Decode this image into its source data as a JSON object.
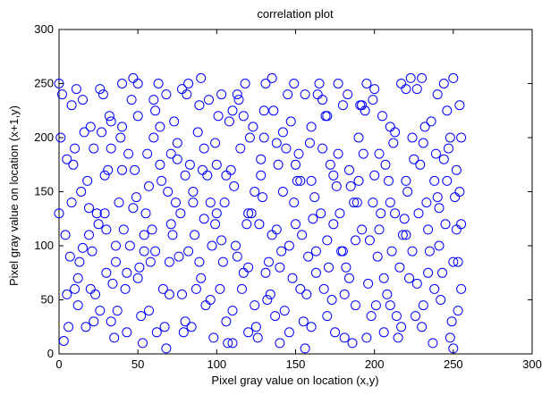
{
  "chart_data": {
    "type": "scatter",
    "title": "correlation plot",
    "xlabel": "Pixel gray value on location (x,y)",
    "ylabel": "Pixel gray value on location (x+1,y)",
    "xlim": [
      0,
      300
    ],
    "ylim": [
      0,
      300
    ],
    "xticks": [
      0,
      50,
      100,
      150,
      200,
      250,
      300
    ],
    "yticks": [
      0,
      50,
      100,
      150,
      200,
      250,
      300
    ],
    "grid": false,
    "legend": "none",
    "marker": "circle-open",
    "marker_color": "#0000ff",
    "data_range_note_x": [
      0,
      255
    ],
    "data_range_note_y": [
      0,
      255
    ],
    "points": [
      [
        3,
        12
      ],
      [
        5,
        180
      ],
      [
        8,
        230
      ],
      [
        12,
        45
      ],
      [
        15,
        98
      ],
      [
        18,
        160
      ],
      [
        20,
        210
      ],
      [
        22,
        30
      ],
      [
        25,
        120
      ],
      [
        28,
        240
      ],
      [
        30,
        75
      ],
      [
        33,
        190
      ],
      [
        35,
        15
      ],
      [
        38,
        140
      ],
      [
        40,
        250
      ],
      [
        42,
        60
      ],
      [
        45,
        100
      ],
      [
        48,
        170
      ],
      [
        50,
        220
      ],
      [
        52,
        35
      ],
      [
        55,
        130
      ],
      [
        58,
        85
      ],
      [
        60,
        200
      ],
      [
        62,
        20
      ],
      [
        65,
        160
      ],
      [
        68,
        240
      ],
      [
        70,
        55
      ],
      [
        72,
        110
      ],
      [
        75,
        180
      ],
      [
        78,
        245
      ],
      [
        80,
        30
      ],
      [
        82,
        95
      ],
      [
        85,
        150
      ],
      [
        88,
        205
      ],
      [
        90,
        70
      ],
      [
        92,
        125
      ],
      [
        95,
        235
      ],
      [
        98,
        15
      ],
      [
        100,
        175
      ],
      [
        102,
        60
      ],
      [
        105,
        140
      ],
      [
        108,
        215
      ],
      [
        110,
        40
      ],
      [
        112,
        100
      ],
      [
        115,
        190
      ],
      [
        118,
        250
      ],
      [
        120,
        80
      ],
      [
        122,
        130
      ],
      [
        125,
        25
      ],
      [
        128,
        165
      ],
      [
        130,
        225
      ],
      [
        132,
        50
      ],
      [
        135,
        110
      ],
      [
        138,
        195
      ],
      [
        140,
        10
      ],
      [
        142,
        150
      ],
      [
        145,
        240
      ],
      [
        148,
        70
      ],
      [
        150,
        120
      ],
      [
        152,
        185
      ],
      [
        155,
        30
      ],
      [
        158,
        90
      ],
      [
        160,
        210
      ],
      [
        162,
        145
      ],
      [
        165,
        250
      ],
      [
        168,
        60
      ],
      [
        170,
        105
      ],
      [
        172,
        175
      ],
      [
        175,
        20
      ],
      [
        178,
        130
      ],
      [
        180,
        230
      ],
      [
        182,
        80
      ],
      [
        185,
        155
      ],
      [
        188,
        45
      ],
      [
        190,
        200
      ],
      [
        192,
        115
      ],
      [
        195,
        250
      ],
      [
        198,
        35
      ],
      [
        200,
        165
      ],
      [
        202,
        90
      ],
      [
        205,
        220
      ],
      [
        208,
        55
      ],
      [
        210,
        140
      ],
      [
        212,
        195
      ],
      [
        215,
        15
      ],
      [
        218,
        110
      ],
      [
        220,
        245
      ],
      [
        222,
        70
      ],
      [
        225,
        180
      ],
      [
        228,
        130
      ],
      [
        230,
        25
      ],
      [
        232,
        210
      ],
      [
        235,
        95
      ],
      [
        238,
        160
      ],
      [
        240,
        240
      ],
      [
        242,
        50
      ],
      [
        245,
        120
      ],
      [
        248,
        200
      ],
      [
        250,
        5
      ],
      [
        252,
        170
      ],
      [
        254,
        230
      ],
      [
        253,
        85
      ],
      [
        251,
        145
      ],
      [
        249,
        30
      ],
      [
        247,
        190
      ],
      [
        244,
        250
      ],
      [
        241,
        100
      ],
      [
        238,
        60
      ],
      [
        236,
        215
      ],
      [
        233,
        140
      ],
      [
        229,
        175
      ],
      [
        226,
        35
      ],
      [
        223,
        255
      ],
      [
        219,
        125
      ],
      [
        216,
        80
      ],
      [
        213,
        205
      ],
      [
        209,
        160
      ],
      [
        206,
        20
      ],
      [
        203,
        115
      ],
      [
        199,
        235
      ],
      [
        196,
        65
      ],
      [
        193,
        185
      ],
      [
        189,
        140
      ],
      [
        186,
        10
      ],
      [
        183,
        240
      ],
      [
        179,
        95
      ],
      [
        176,
        155
      ],
      [
        173,
        50
      ],
      [
        169,
        220
      ],
      [
        166,
        130
      ],
      [
        163,
        75
      ],
      [
        159,
        195
      ],
      [
        156,
        5
      ],
      [
        153,
        160
      ],
      [
        149,
        250
      ],
      [
        146,
        100
      ],
      [
        143,
        40
      ],
      [
        139,
        175
      ],
      [
        136,
        225
      ],
      [
        133,
        85
      ],
      [
        129,
        145
      ],
      [
        126,
        15
      ],
      [
        123,
        210
      ],
      [
        119,
        120
      ],
      [
        116,
        60
      ],
      [
        113,
        240
      ],
      [
        109,
        170
      ],
      [
        106,
        30
      ],
      [
        103,
        105
      ],
      [
        99,
        195
      ],
      [
        96,
        140
      ],
      [
        93,
        45
      ],
      [
        89,
        230
      ],
      [
        86,
        110
      ],
      [
        83,
        175
      ],
      [
        79,
        20
      ],
      [
        76,
        90
      ],
      [
        73,
        215
      ],
      [
        69,
        150
      ],
      [
        66,
        60
      ],
      [
        63,
        250
      ],
      [
        59,
        115
      ],
      [
        56,
        185
      ],
      [
        53,
        10
      ],
      [
        49,
        145
      ],
      [
        46,
        235
      ],
      [
        43,
        75
      ],
      [
        39,
        200
      ],
      [
        36,
        100
      ],
      [
        33,
        30
      ],
      [
        29,
        165
      ],
      [
        26,
        245
      ],
      [
        23,
        55
      ],
      [
        19,
        135
      ],
      [
        16,
        205
      ],
      [
        13,
        85
      ],
      [
        9,
        175
      ],
      [
        6,
        25
      ],
      [
        4,
        110
      ],
      [
        2,
        240
      ],
      [
        10,
        60
      ],
      [
        14,
        150
      ],
      [
        21,
        95
      ],
      [
        27,
        205
      ],
      [
        31,
        170
      ],
      [
        37,
        40
      ],
      [
        41,
        115
      ],
      [
        47,
        255
      ],
      [
        51,
        80
      ],
      [
        57,
        155
      ],
      [
        61,
        95
      ],
      [
        67,
        25
      ],
      [
        71,
        185
      ],
      [
        77,
        130
      ],
      [
        81,
        240
      ],
      [
        87,
        60
      ],
      [
        91,
        170
      ],
      [
        97,
        100
      ],
      [
        101,
        220
      ],
      [
        107,
        10
      ],
      [
        111,
        155
      ],
      [
        117,
        75
      ],
      [
        121,
        200
      ],
      [
        127,
        120
      ],
      [
        131,
        250
      ],
      [
        137,
        35
      ],
      [
        141,
        95
      ],
      [
        147,
        215
      ],
      [
        151,
        160
      ],
      [
        157,
        55
      ],
      [
        161,
        125
      ],
      [
        167,
        235
      ],
      [
        171,
        80
      ],
      [
        177,
        185
      ],
      [
        181,
        15
      ],
      [
        187,
        140
      ],
      [
        191,
        230
      ],
      [
        197,
        105
      ],
      [
        201,
        45
      ],
      [
        207,
        175
      ],
      [
        211,
        95
      ],
      [
        217,
        250
      ],
      [
        221,
        150
      ],
      [
        227,
        65
      ],
      [
        231,
        195
      ],
      [
        237,
        10
      ],
      [
        241,
        135
      ],
      [
        246,
        225
      ],
      [
        250,
        85
      ],
      [
        254,
        150
      ],
      [
        253,
        40
      ],
      [
        250,
        255
      ],
      [
        246,
        160
      ],
      [
        243,
        75
      ],
      [
        239,
        185
      ],
      [
        234,
        115
      ],
      [
        231,
        45
      ],
      [
        227,
        245
      ],
      [
        224,
        95
      ],
      [
        220,
        160
      ],
      [
        217,
        25
      ],
      [
        213,
        130
      ],
      [
        210,
        210
      ],
      [
        206,
        70
      ],
      [
        203,
        185
      ],
      [
        199,
        140
      ],
      [
        195,
        15
      ],
      [
        192,
        230
      ],
      [
        188,
        105
      ],
      [
        184,
        170
      ],
      [
        181,
        55
      ],
      [
        177,
        250
      ],
      [
        174,
        120
      ],
      [
        170,
        35
      ],
      [
        167,
        190
      ],
      [
        163,
        95
      ],
      [
        160,
        160
      ],
      [
        156,
        240
      ],
      [
        153,
        60
      ],
      [
        149,
        140
      ],
      [
        146,
        20
      ],
      [
        142,
        205
      ],
      [
        138,
        115
      ],
      [
        135,
        255
      ],
      [
        131,
        75
      ],
      [
        128,
        180
      ],
      [
        124,
        45
      ],
      [
        120,
        130
      ],
      [
        117,
        220
      ],
      [
        113,
        90
      ],
      [
        110,
        10
      ],
      [
        106,
        165
      ],
      [
        103,
        240
      ],
      [
        99,
        120
      ],
      [
        96,
        50
      ],
      [
        92,
        190
      ],
      [
        89,
        85
      ],
      [
        85,
        140
      ],
      [
        82,
        250
      ],
      [
        78,
        55
      ],
      [
        75,
        195
      ],
      [
        71,
        120
      ],
      [
        68,
        5
      ],
      [
        64,
        175
      ],
      [
        61,
        225
      ],
      [
        57,
        40
      ],
      [
        54,
        110
      ],
      [
        50,
        250
      ],
      [
        47,
        135
      ],
      [
        43,
        20
      ],
      [
        40,
        170
      ],
      [
        36,
        85
      ],
      [
        33,
        215
      ],
      [
        29,
        130
      ],
      [
        26,
        40
      ],
      [
        22,
        190
      ],
      [
        19,
        110
      ],
      [
        15,
        235
      ],
      [
        12,
        70
      ],
      [
        8,
        140
      ],
      [
        5,
        55
      ],
      [
        1,
        200
      ],
      [
        7,
        90
      ],
      [
        11,
        245
      ],
      [
        17,
        25
      ],
      [
        24,
        130
      ],
      [
        32,
        220
      ],
      [
        34,
        65
      ],
      [
        44,
        185
      ],
      [
        54,
        95
      ],
      [
        64,
        210
      ],
      [
        74,
        140
      ],
      [
        84,
        25
      ],
      [
        94,
        165
      ],
      [
        104,
        85
      ],
      [
        114,
        235
      ],
      [
        124,
        150
      ],
      [
        134,
        55
      ],
      [
        144,
        190
      ],
      [
        154,
        110
      ],
      [
        164,
        240
      ],
      [
        174,
        165
      ],
      [
        184,
        70
      ],
      [
        194,
        225
      ],
      [
        204,
        130
      ],
      [
        214,
        35
      ],
      [
        224,
        200
      ],
      [
        234,
        75
      ],
      [
        244,
        180
      ],
      [
        252,
        115
      ],
      [
        248,
        15
      ],
      [
        240,
        145
      ],
      [
        230,
        255
      ],
      [
        220,
        110
      ],
      [
        210,
        45
      ],
      [
        200,
        245
      ],
      [
        190,
        160
      ],
      [
        180,
        95
      ],
      [
        170,
        220
      ],
      [
        160,
        25
      ],
      [
        150,
        175
      ],
      [
        140,
        80
      ],
      [
        130,
        200
      ],
      [
        120,
        20
      ],
      [
        110,
        225
      ],
      [
        100,
        130
      ],
      [
        90,
        255
      ],
      [
        80,
        165
      ],
      [
        70,
        85
      ],
      [
        60,
        235
      ],
      [
        50,
        70
      ],
      [
        40,
        210
      ],
      [
        30,
        115
      ],
      [
        20,
        60
      ],
      [
        10,
        190
      ],
      [
        0,
        130
      ],
      [
        255,
        60
      ],
      [
        255,
        200
      ],
      [
        255,
        120
      ],
      [
        0,
        250
      ]
    ]
  }
}
